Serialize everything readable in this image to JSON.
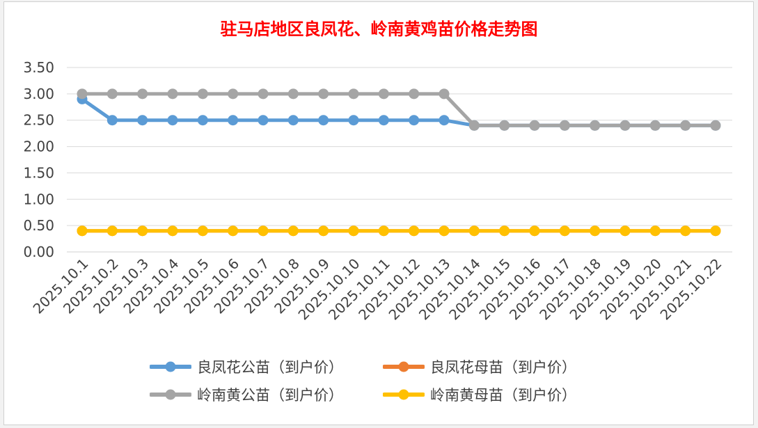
{
  "chart_data": {
    "type": "line",
    "title": "驻马店地区良凤花、岭南黄鸡苗价格走势图",
    "title_color": "#ff0000",
    "categories": [
      "2025.10.1",
      "2025.10.2",
      "2025.10.3",
      "2025.10.4",
      "2025.10.5",
      "2025.10.6",
      "2025.10.7",
      "2025.10.8",
      "2025.10.9",
      "2025.10.10",
      "2025.10.11",
      "2025.10.12",
      "2025.10.13",
      "2025.10.14",
      "2025.10.15",
      "2025.10.16",
      "2025.10.17",
      "2025.10.18",
      "2025.10.19",
      "2025.10.20",
      "2025.10.21",
      "2025.10.22"
    ],
    "ylim": [
      0,
      3.5
    ],
    "yticks": [
      "0.00",
      "0.50",
      "1.00",
      "1.50",
      "2.00",
      "2.50",
      "3.00",
      "3.50"
    ],
    "grid": true,
    "legend_position": "bottom",
    "series": [
      {
        "name": "良凤花公苗（到户价）",
        "color": "#5b9bd5",
        "values": [
          2.9,
          2.5,
          2.5,
          2.5,
          2.5,
          2.5,
          2.5,
          2.5,
          2.5,
          2.5,
          2.5,
          2.5,
          2.5,
          2.4,
          2.4,
          2.4,
          2.4,
          2.4,
          2.4,
          2.4,
          2.4,
          2.4
        ]
      },
      {
        "name": "良凤花母苗（到户价）",
        "color": "#ed7d31",
        "values": [
          0.4,
          0.4,
          0.4,
          0.4,
          0.4,
          0.4,
          0.4,
          0.4,
          0.4,
          0.4,
          0.4,
          0.4,
          0.4,
          0.4,
          0.4,
          0.4,
          0.4,
          0.4,
          0.4,
          0.4,
          0.4,
          0.4
        ]
      },
      {
        "name": "岭南黄公苗（到户价）",
        "color": "#a5a5a5",
        "values": [
          3.0,
          3.0,
          3.0,
          3.0,
          3.0,
          3.0,
          3.0,
          3.0,
          3.0,
          3.0,
          3.0,
          3.0,
          3.0,
          2.4,
          2.4,
          2.4,
          2.4,
          2.4,
          2.4,
          2.4,
          2.4,
          2.4
        ]
      },
      {
        "name": "岭南黄母苗（到户价）",
        "color": "#ffc000",
        "values": [
          0.4,
          0.4,
          0.4,
          0.4,
          0.4,
          0.4,
          0.4,
          0.4,
          0.4,
          0.4,
          0.4,
          0.4,
          0.4,
          0.4,
          0.4,
          0.4,
          0.4,
          0.4,
          0.4,
          0.4,
          0.4,
          0.4
        ]
      }
    ]
  }
}
